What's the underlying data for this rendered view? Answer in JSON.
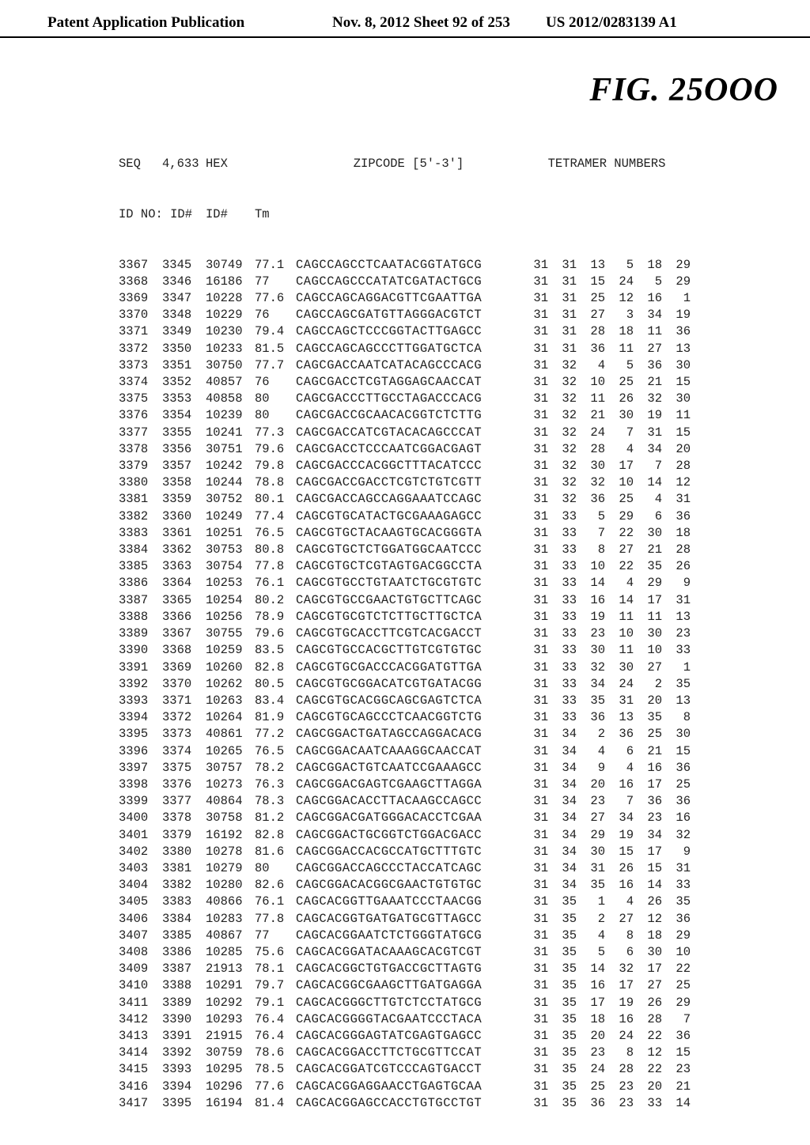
{
  "header": {
    "left": "Patent Application Publication",
    "mid": "Nov. 8, 2012  Sheet 92 of 253",
    "right": "US 2012/0283139 A1"
  },
  "figure_title": "FIG.  25OOO",
  "columns": {
    "h_seq": "SEQ",
    "h_4633": "4,633",
    "h_hex": "HEX",
    "h_zip": "ZIPCODE [5'-3']",
    "h_tet": "TETRAMER NUMBERS",
    "sub_idno": "ID NO:",
    "sub_id": "ID#",
    "sub_id2": "ID#",
    "sub_tm": "Tm"
  },
  "rows": [
    {
      "seq": "3367",
      "id": "3345",
      "hex": "30749",
      "tm": "77.1",
      "zip": "CAGCCAGCCTCAATACGGTATGCG",
      "t": [
        "31",
        "31",
        "13",
        "5",
        "18",
        "29"
      ]
    },
    {
      "seq": "3368",
      "id": "3346",
      "hex": "16186",
      "tm": "77",
      "zip": "CAGCCAGCCCATATCGATACTGCG",
      "t": [
        "31",
        "31",
        "15",
        "24",
        "5",
        "29"
      ]
    },
    {
      "seq": "3369",
      "id": "3347",
      "hex": "10228",
      "tm": "77.6",
      "zip": "CAGCCAGCAGGACGTTCGAATTGA",
      "t": [
        "31",
        "31",
        "25",
        "12",
        "16",
        "1"
      ]
    },
    {
      "seq": "3370",
      "id": "3348",
      "hex": "10229",
      "tm": "76",
      "zip": "CAGCCAGCGATGTTAGGGACGTCT",
      "t": [
        "31",
        "31",
        "27",
        "3",
        "34",
        "19"
      ]
    },
    {
      "seq": "3371",
      "id": "3349",
      "hex": "10230",
      "tm": "79.4",
      "zip": "CAGCCAGCTCCCGGTACTTGAGCC",
      "t": [
        "31",
        "31",
        "28",
        "18",
        "11",
        "36"
      ]
    },
    {
      "seq": "3372",
      "id": "3350",
      "hex": "10233",
      "tm": "81.5",
      "zip": "CAGCCAGCAGCCCTTGGATGCTCA",
      "t": [
        "31",
        "31",
        "36",
        "11",
        "27",
        "13"
      ]
    },
    {
      "seq": "3373",
      "id": "3351",
      "hex": "30750",
      "tm": "77.7",
      "zip": "CAGCGACCAATCATACAGCCCACG",
      "t": [
        "31",
        "32",
        "4",
        "5",
        "36",
        "30"
      ]
    },
    {
      "seq": "3374",
      "id": "3352",
      "hex": "40857",
      "tm": "76",
      "zip": "CAGCGACCTCGTAGGAGCAACCAT",
      "t": [
        "31",
        "32",
        "10",
        "25",
        "21",
        "15"
      ]
    },
    {
      "seq": "3375",
      "id": "3353",
      "hex": "40858",
      "tm": "80",
      "zip": "CAGCGACCCTTGCCTAGACCCACG",
      "t": [
        "31",
        "32",
        "11",
        "26",
        "32",
        "30"
      ]
    },
    {
      "seq": "3376",
      "id": "3354",
      "hex": "10239",
      "tm": "80",
      "zip": "CAGCGACCGCAACACGGTCTCTTG",
      "t": [
        "31",
        "32",
        "21",
        "30",
        "19",
        "11"
      ]
    },
    {
      "seq": "3377",
      "id": "3355",
      "hex": "10241",
      "tm": "77.3",
      "zip": "CAGCGACCATCGTACACAGCCCAT",
      "t": [
        "31",
        "32",
        "24",
        "7",
        "31",
        "15"
      ]
    },
    {
      "seq": "3378",
      "id": "3356",
      "hex": "30751",
      "tm": "79.6",
      "zip": "CAGCGACCTCCCAATCGGACGAGT",
      "t": [
        "31",
        "32",
        "28",
        "4",
        "34",
        "20"
      ]
    },
    {
      "seq": "3379",
      "id": "3357",
      "hex": "10242",
      "tm": "79.8",
      "zip": "CAGCGACCCACGGCTTTACATCCC",
      "t": [
        "31",
        "32",
        "30",
        "17",
        "7",
        "28"
      ]
    },
    {
      "seq": "3380",
      "id": "3358",
      "hex": "10244",
      "tm": "78.8",
      "zip": "CAGCGACCGACCTCGTCTGTCGTT",
      "t": [
        "31",
        "32",
        "32",
        "10",
        "14",
        "12"
      ]
    },
    {
      "seq": "3381",
      "id": "3359",
      "hex": "30752",
      "tm": "80.1",
      "zip": "CAGCGACCAGCCAGGAAATCCAGC",
      "t": [
        "31",
        "32",
        "36",
        "25",
        "4",
        "31"
      ]
    },
    {
      "seq": "3382",
      "id": "3360",
      "hex": "10249",
      "tm": "77.4",
      "zip": "CAGCGTGCATACTGCGAAAGAGCC",
      "t": [
        "31",
        "33",
        "5",
        "29",
        "6",
        "36"
      ]
    },
    {
      "seq": "3383",
      "id": "3361",
      "hex": "10251",
      "tm": "76.5",
      "zip": "CAGCGTGCTACAAGTGCACGGGTA",
      "t": [
        "31",
        "33",
        "7",
        "22",
        "30",
        "18"
      ]
    },
    {
      "seq": "3384",
      "id": "3362",
      "hex": "30753",
      "tm": "80.8",
      "zip": "CAGCGTGCTCTGGATGGCAATCCC",
      "t": [
        "31",
        "33",
        "8",
        "27",
        "21",
        "28"
      ]
    },
    {
      "seq": "3385",
      "id": "3363",
      "hex": "30754",
      "tm": "77.8",
      "zip": "CAGCGTGCTCGTAGTGACGGCCTA",
      "t": [
        "31",
        "33",
        "10",
        "22",
        "35",
        "26"
      ]
    },
    {
      "seq": "3386",
      "id": "3364",
      "hex": "10253",
      "tm": "76.1",
      "zip": "CAGCGTGCCTGTAATCTGCGTGTC",
      "t": [
        "31",
        "33",
        "14",
        "4",
        "29",
        "9"
      ]
    },
    {
      "seq": "3387",
      "id": "3365",
      "hex": "10254",
      "tm": "80.2",
      "zip": "CAGCGTGCCGAACTGTGCTTCAGC",
      "t": [
        "31",
        "33",
        "16",
        "14",
        "17",
        "31"
      ]
    },
    {
      "seq": "3388",
      "id": "3366",
      "hex": "10256",
      "tm": "78.9",
      "zip": "CAGCGTGCGTCTCTTGCTTGCTCA",
      "t": [
        "31",
        "33",
        "19",
        "11",
        "11",
        "13"
      ]
    },
    {
      "seq": "3389",
      "id": "3367",
      "hex": "30755",
      "tm": "79.6",
      "zip": "CAGCGTGCACCTTCGTCACGACCT",
      "t": [
        "31",
        "33",
        "23",
        "10",
        "30",
        "23"
      ]
    },
    {
      "seq": "3390",
      "id": "3368",
      "hex": "10259",
      "tm": "83.5",
      "zip": "CAGCGTGCCACGCTTGTCGTGTGC",
      "t": [
        "31",
        "33",
        "30",
        "11",
        "10",
        "33"
      ]
    },
    {
      "seq": "3391",
      "id": "3369",
      "hex": "10260",
      "tm": "82.8",
      "zip": "CAGCGTGCGACCCACGGATGTTGA",
      "t": [
        "31",
        "33",
        "32",
        "30",
        "27",
        "1"
      ]
    },
    {
      "seq": "3392",
      "id": "3370",
      "hex": "10262",
      "tm": "80.5",
      "zip": "CAGCGTGCGGACATCGTGATACGG",
      "t": [
        "31",
        "33",
        "34",
        "24",
        "2",
        "35"
      ]
    },
    {
      "seq": "3393",
      "id": "3371",
      "hex": "10263",
      "tm": "83.4",
      "zip": "CAGCGTGCACGGCAGCGAGTCTCA",
      "t": [
        "31",
        "33",
        "35",
        "31",
        "20",
        "13"
      ]
    },
    {
      "seq": "3394",
      "id": "3372",
      "hex": "10264",
      "tm": "81.9",
      "zip": "CAGCGTGCAGCCCTCAACGGTCTG",
      "t": [
        "31",
        "33",
        "36",
        "13",
        "35",
        "8"
      ]
    },
    {
      "seq": "3395",
      "id": "3373",
      "hex": "40861",
      "tm": "77.2",
      "zip": "CAGCGGACTGATAGCCAGGACACG",
      "t": [
        "31",
        "34",
        "2",
        "36",
        "25",
        "30"
      ]
    },
    {
      "seq": "3396",
      "id": "3374",
      "hex": "10265",
      "tm": "76.5",
      "zip": "CAGCGGACAATCAAAGGCAACCAT",
      "t": [
        "31",
        "34",
        "4",
        "6",
        "21",
        "15"
      ]
    },
    {
      "seq": "3397",
      "id": "3375",
      "hex": "30757",
      "tm": "78.2",
      "zip": "CAGCGGACTGTCAATCCGAAAGCC",
      "t": [
        "31",
        "34",
        "9",
        "4",
        "16",
        "36"
      ]
    },
    {
      "seq": "3398",
      "id": "3376",
      "hex": "10273",
      "tm": "76.3",
      "zip": "CAGCGGACGAGTCGAAGCTTAGGA",
      "t": [
        "31",
        "34",
        "20",
        "16",
        "17",
        "25"
      ]
    },
    {
      "seq": "3399",
      "id": "3377",
      "hex": "40864",
      "tm": "78.3",
      "zip": "CAGCGGACACCTTACAAGCCAGCC",
      "t": [
        "31",
        "34",
        "23",
        "7",
        "36",
        "36"
      ]
    },
    {
      "seq": "3400",
      "id": "3378",
      "hex": "30758",
      "tm": "81.2",
      "zip": "CAGCGGACGATGGGACACCTCGAA",
      "t": [
        "31",
        "34",
        "27",
        "34",
        "23",
        "16"
      ]
    },
    {
      "seq": "3401",
      "id": "3379",
      "hex": "16192",
      "tm": "82.8",
      "zip": "CAGCGGACTGCGGTCTGGACGACC",
      "t": [
        "31",
        "34",
        "29",
        "19",
        "34",
        "32"
      ]
    },
    {
      "seq": "3402",
      "id": "3380",
      "hex": "10278",
      "tm": "81.6",
      "zip": "CAGCGGACCACGCCATGCTTTGTC",
      "t": [
        "31",
        "34",
        "30",
        "15",
        "17",
        "9"
      ]
    },
    {
      "seq": "3403",
      "id": "3381",
      "hex": "10279",
      "tm": "80",
      "zip": "CAGCGGACCAGCCCTACCATCAGC",
      "t": [
        "31",
        "34",
        "31",
        "26",
        "15",
        "31"
      ]
    },
    {
      "seq": "3404",
      "id": "3382",
      "hex": "10280",
      "tm": "82.6",
      "zip": "CAGCGGACACGGCGAACTGTGTGC",
      "t": [
        "31",
        "34",
        "35",
        "16",
        "14",
        "33"
      ]
    },
    {
      "seq": "3405",
      "id": "3383",
      "hex": "40866",
      "tm": "76.1",
      "zip": "CAGCACGGTTGAAATCCCTAACGG",
      "t": [
        "31",
        "35",
        "1",
        "4",
        "26",
        "35"
      ]
    },
    {
      "seq": "3406",
      "id": "3384",
      "hex": "10283",
      "tm": "77.8",
      "zip": "CAGCACGGTGATGATGCGTTAGCC",
      "t": [
        "31",
        "35",
        "2",
        "27",
        "12",
        "36"
      ]
    },
    {
      "seq": "3407",
      "id": "3385",
      "hex": "40867",
      "tm": "77",
      "zip": "CAGCACGGAATCTCTGGGTATGCG",
      "t": [
        "31",
        "35",
        "4",
        "8",
        "18",
        "29"
      ]
    },
    {
      "seq": "3408",
      "id": "3386",
      "hex": "10285",
      "tm": "75.6",
      "zip": "CAGCACGGATACAAAGCACGTCGT",
      "t": [
        "31",
        "35",
        "5",
        "6",
        "30",
        "10"
      ]
    },
    {
      "seq": "3409",
      "id": "3387",
      "hex": "21913",
      "tm": "78.1",
      "zip": "CAGCACGGCTGTGACCGCTTAGTG",
      "t": [
        "31",
        "35",
        "14",
        "32",
        "17",
        "22"
      ]
    },
    {
      "seq": "3410",
      "id": "3388",
      "hex": "10291",
      "tm": "79.7",
      "zip": "CAGCACGGCGAAGCTTGATGAGGA",
      "t": [
        "31",
        "35",
        "16",
        "17",
        "27",
        "25"
      ]
    },
    {
      "seq": "3411",
      "id": "3389",
      "hex": "10292",
      "tm": "79.1",
      "zip": "CAGCACGGGCTTGTCTCCTATGCG",
      "t": [
        "31",
        "35",
        "17",
        "19",
        "26",
        "29"
      ]
    },
    {
      "seq": "3412",
      "id": "3390",
      "hex": "10293",
      "tm": "76.4",
      "zip": "CAGCACGGGGTACGAATCCCTACA",
      "t": [
        "31",
        "35",
        "18",
        "16",
        "28",
        "7"
      ]
    },
    {
      "seq": "3413",
      "id": "3391",
      "hex": "21915",
      "tm": "76.4",
      "zip": "CAGCACGGGAGTATCGAGTGAGCC",
      "t": [
        "31",
        "35",
        "20",
        "24",
        "22",
        "36"
      ]
    },
    {
      "seq": "3414",
      "id": "3392",
      "hex": "30759",
      "tm": "78.6",
      "zip": "CAGCACGGACCTTCTGCGTTCCAT",
      "t": [
        "31",
        "35",
        "23",
        "8",
        "12",
        "15"
      ]
    },
    {
      "seq": "3415",
      "id": "3393",
      "hex": "10295",
      "tm": "78.5",
      "zip": "CAGCACGGATCGTCCCAGTGACCT",
      "t": [
        "31",
        "35",
        "24",
        "28",
        "22",
        "23"
      ]
    },
    {
      "seq": "3416",
      "id": "3394",
      "hex": "10296",
      "tm": "77.6",
      "zip": "CAGCACGGAGGAACCTGAGTGCAA",
      "t": [
        "31",
        "35",
        "25",
        "23",
        "20",
        "21"
      ]
    },
    {
      "seq": "3417",
      "id": "3395",
      "hex": "16194",
      "tm": "81.4",
      "zip": "CAGCACGGAGCCACCTGTGCCTGT",
      "t": [
        "31",
        "35",
        "36",
        "23",
        "33",
        "14"
      ]
    }
  ]
}
